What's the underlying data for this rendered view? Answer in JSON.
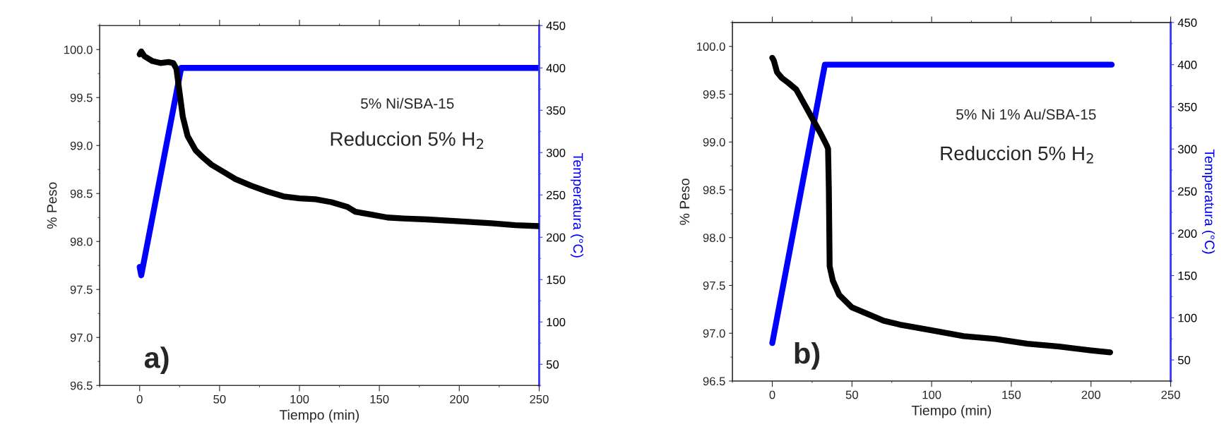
{
  "chart_data": [
    {
      "type": "line",
      "xlabel": "Tiempo (min)",
      "ylabel": "% Peso",
      "y2label": "Temperatura (°C)",
      "annotations": [
        "5% Ni/SBA-15",
        "Reduccion 5% H$_{2}$",
        "a)"
      ],
      "xlim": [
        -25,
        250
      ],
      "xticks": [
        0,
        50,
        100,
        150,
        200,
        250
      ],
      "ylim": [
        96.5,
        100.25
      ],
      "yticks": [
        {
          "value": 96.5,
          "label": "96.5"
        },
        {
          "value": 97,
          "label": "97.0"
        },
        {
          "value": 97.5,
          "label": "97.5"
        },
        {
          "value": 98,
          "label": "98.0"
        },
        {
          "value": 98.5,
          "label": "98.5"
        },
        {
          "value": 99,
          "label": "99.0"
        },
        {
          "value": 99.5,
          "label": "99.5"
        },
        {
          "value": 100,
          "label": "100.0"
        }
      ],
      "y2lim": [
        25,
        450
      ],
      "y2ticks": [
        50,
        100,
        150,
        200,
        250,
        300,
        350,
        400,
        450
      ],
      "series": [
        {
          "color": "#000000",
          "x": [
            0,
            1,
            3,
            8,
            13,
            18,
            21,
            23,
            25,
            27,
            30,
            35,
            40,
            45,
            50,
            60,
            70,
            80,
            90,
            100,
            110,
            120,
            130,
            135,
            145,
            155,
            165,
            180,
            200,
            220,
            235,
            250
          ],
          "values": [
            99.95,
            99.98,
            99.93,
            99.88,
            99.86,
            99.87,
            99.86,
            99.8,
            99.55,
            99.3,
            99.1,
            98.95,
            98.87,
            98.8,
            98.75,
            98.65,
            98.58,
            98.52,
            98.47,
            98.45,
            98.44,
            98.41,
            98.36,
            98.31,
            98.28,
            98.25,
            98.24,
            98.23,
            98.21,
            98.19,
            98.17,
            98.16
          ]
        },
        {
          "color": "#0000ff",
          "axis": "y2",
          "x": [
            0,
            1,
            26,
            250
          ],
          "values": [
            165,
            155,
            400,
            400
          ]
        }
      ]
    },
    {
      "type": "line",
      "xlabel": "Tiempo (min)",
      "ylabel": "% Peso",
      "y2label": "Temperatura (°C)",
      "annotations": [
        "5% Ni 1% Au/SBA-15",
        "Reduccion 5% H$_{2}$",
        "b)"
      ],
      "xlim": [
        -25,
        250
      ],
      "xticks": [
        0,
        50,
        100,
        150,
        200,
        250
      ],
      "ylim": [
        96.5,
        100.25
      ],
      "yticks": [
        {
          "value": 96.5,
          "label": "96.5"
        },
        {
          "value": 97,
          "label": "97.0"
        },
        {
          "value": 97.5,
          "label": "97.5"
        },
        {
          "value": 98,
          "label": "98.0"
        },
        {
          "value": 98.5,
          "label": "98.5"
        },
        {
          "value": 99,
          "label": "99.0"
        },
        {
          "value": 99.5,
          "label": "99.5"
        },
        {
          "value": 100,
          "label": "100.0"
        }
      ],
      "y2lim": [
        25,
        450
      ],
      "y2ticks": [
        50,
        100,
        150,
        200,
        250,
        300,
        350,
        400,
        450
      ],
      "series": [
        {
          "color": "#000000",
          "x": [
            0,
            1,
            3,
            6,
            10,
            15,
            20,
            25,
            30,
            34,
            35,
            35.5,
            36,
            38,
            42,
            50,
            60,
            70,
            80,
            100,
            120,
            140,
            160,
            180,
            200,
            212
          ],
          "values": [
            99.88,
            99.85,
            99.73,
            99.67,
            99.62,
            99.55,
            99.4,
            99.25,
            99.1,
            98.97,
            98.93,
            98.5,
            97.7,
            97.55,
            97.4,
            97.27,
            97.2,
            97.13,
            97.09,
            97.03,
            96.97,
            96.94,
            96.89,
            96.86,
            96.82,
            96.8
          ]
        },
        {
          "color": "#0000ff",
          "axis": "y2",
          "x": [
            0,
            33,
            213
          ],
          "values": [
            70,
            400,
            400
          ]
        }
      ]
    }
  ]
}
